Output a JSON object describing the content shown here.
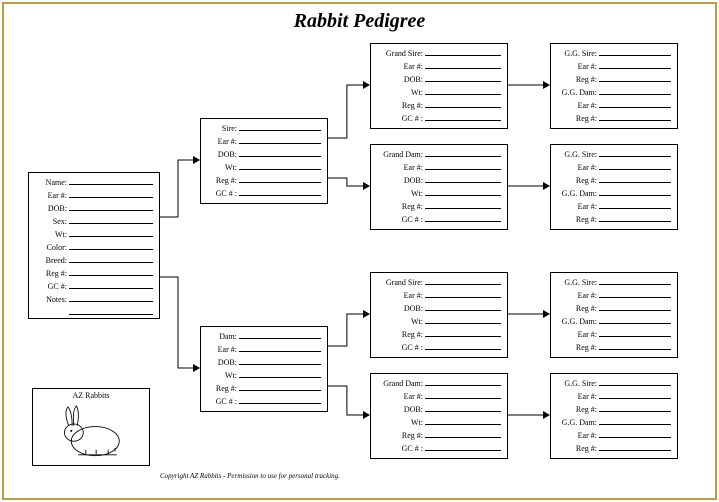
{
  "title": "Rabbit Pedigree",
  "border_color": "#b8a03d",
  "subject": {
    "fields": [
      "Name:",
      "Ear #:",
      "DOB:",
      "Sex:",
      "Wt:",
      "Color:",
      "Breed:",
      "Reg #:",
      "GC #:",
      "Notes:"
    ],
    "notes_extra_lines": 1,
    "label_width": 34
  },
  "parent": {
    "sire_fields": [
      "Sire:",
      "Ear #:",
      "DOB:",
      "Wt:",
      "Reg #:",
      "GC # :"
    ],
    "dam_fields": [
      "Dam:",
      "Ear #:",
      "DOB:",
      "Wt:",
      "Reg #:",
      "GC # :"
    ],
    "label_width": 32
  },
  "grand": {
    "sire_fields": [
      "Grand Sire:",
      "Ear #:",
      "DOB:",
      "Wt:",
      "Reg #:",
      "GC # :"
    ],
    "dam_fields": [
      "Grand Dam:",
      "Ear #:",
      "DOB:",
      "Wt:",
      "Reg #:",
      "GC # :"
    ],
    "label_width": 48
  },
  "gg": {
    "sire_header": "G.G. Sire:",
    "dam_header": "G.G. Dam:",
    "sub_fields": [
      "Ear #:",
      "Reg #:"
    ],
    "label_width": 42
  },
  "logo": {
    "label": "AZ Rabbits"
  },
  "copyright": "Copyright  AZ Rabbits - Permission to use for personal tracking."
}
